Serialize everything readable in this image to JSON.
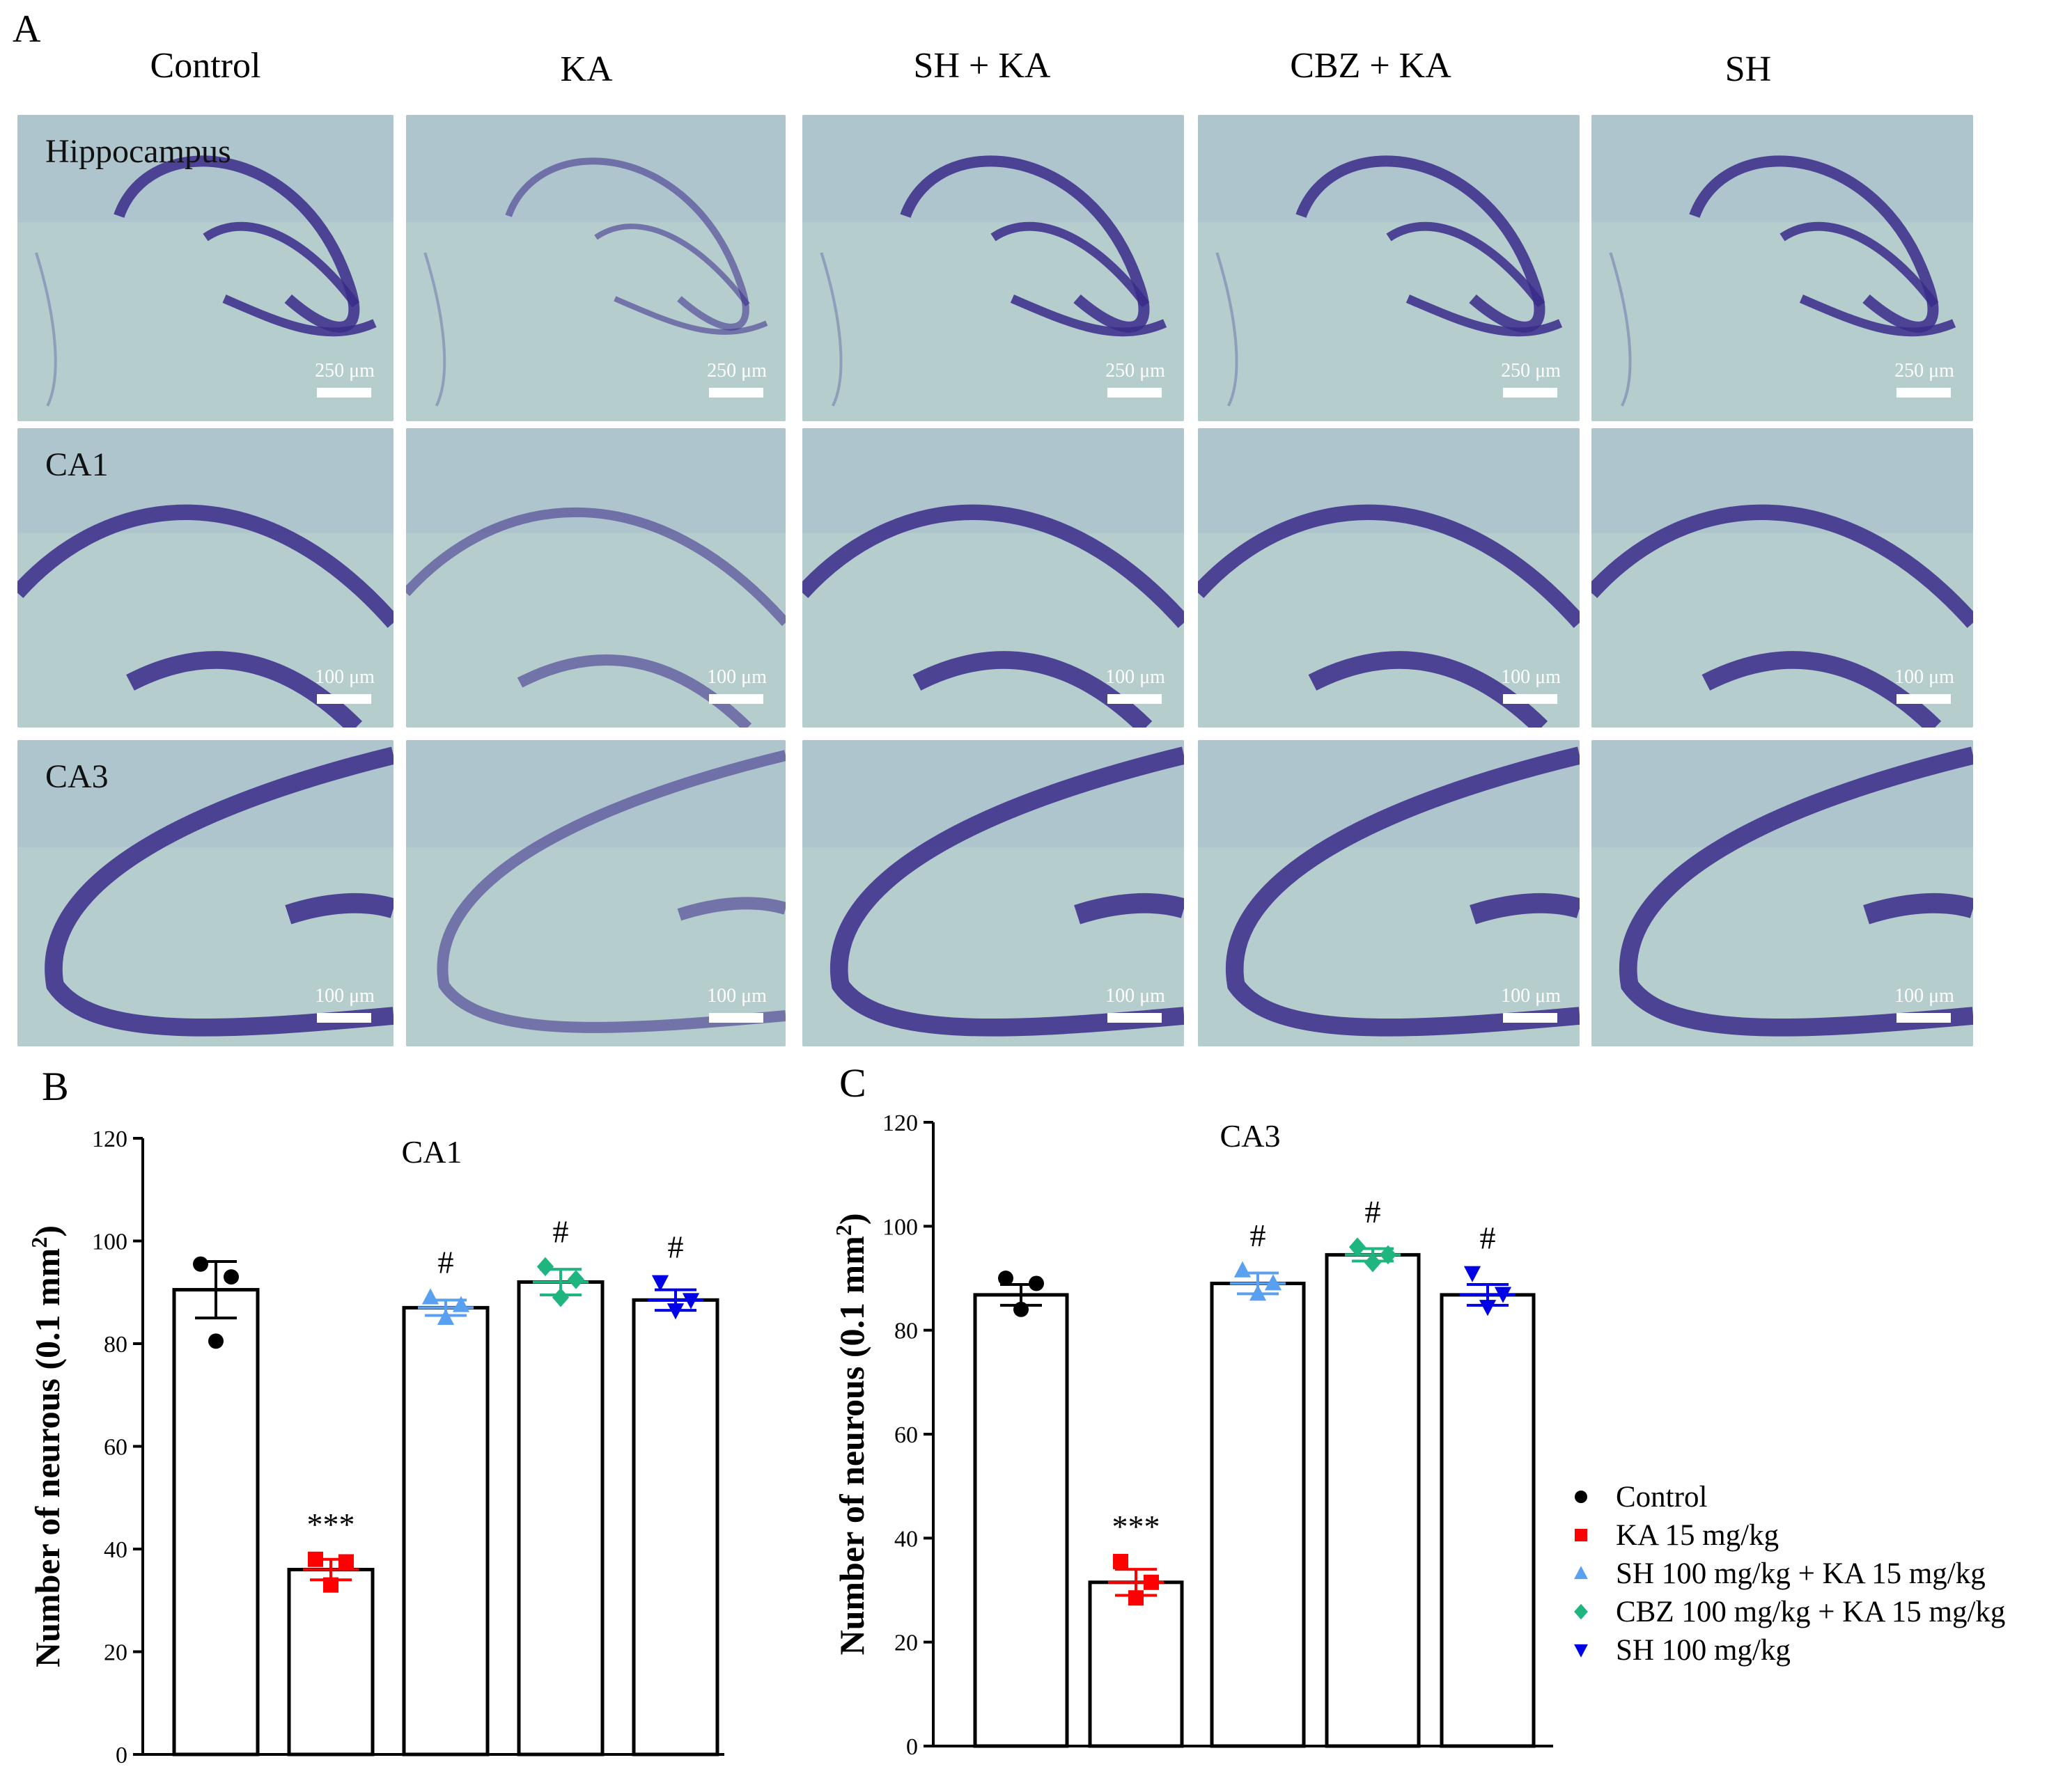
{
  "panel_a": {
    "letter": "A",
    "columns": [
      "Control",
      "KA",
      "SH + KA",
      "CBZ + KA",
      "SH"
    ],
    "rows": [
      {
        "label": "Hippocampus",
        "scale": "250 μm"
      },
      {
        "label": "CA1",
        "scale": "100 μm"
      },
      {
        "label": "CA3",
        "scale": "100 μm"
      }
    ]
  },
  "colors": {
    "control": "#000000",
    "ka": "#ff0000",
    "sh_ka": "#5aa0f0",
    "cbz_ka": "#1fb57e",
    "sh": "#0000e6",
    "tissue_bg": "#b5cdcc",
    "stain": "#3a2a8a"
  },
  "legend": [
    {
      "label": "Control",
      "marker": "circle",
      "color": "#000000"
    },
    {
      "label": "KA 15 mg/kg",
      "marker": "square",
      "color": "#ff0000"
    },
    {
      "label": "SH 100 mg/kg + KA 15 mg/kg",
      "marker": "triangle-up",
      "color": "#5aa0f0"
    },
    {
      "label": "CBZ 100 mg/kg + KA 15 mg/kg",
      "marker": "diamond",
      "color": "#1fb57e"
    },
    {
      "label": "SH 100 mg/kg",
      "marker": "triangle-down",
      "color": "#0000e6"
    }
  ],
  "chart_data": [
    {
      "panel": "B",
      "type": "bar",
      "title": "CA1",
      "ylabel": "Number of neurous (0.1 mm²)",
      "ylim": [
        0,
        120
      ],
      "yticks": [
        "0",
        "20",
        "40",
        "60",
        "80",
        "100",
        "120"
      ],
      "groups": [
        {
          "name": "Control",
          "mean": 90.5,
          "sem": 5.5,
          "points": [
            95.5,
            93.0,
            80.5
          ],
          "marker": "circle",
          "color": "#000000",
          "annot": ""
        },
        {
          "name": "KA 15 mg/kg",
          "mean": 36.0,
          "sem": 2.0,
          "points": [
            38.0,
            37.5,
            33.0
          ],
          "marker": "square",
          "color": "#ff0000",
          "annot": "***"
        },
        {
          "name": "SH 100 mg/kg + KA 15 mg/kg",
          "mean": 87.0,
          "sem": 1.5,
          "points": [
            89.0,
            87.5,
            85.0
          ],
          "marker": "triangle-up",
          "color": "#5aa0f0",
          "annot": "#"
        },
        {
          "name": "CBZ 100 mg/kg + KA 15 mg/kg",
          "mean": 92.0,
          "sem": 2.5,
          "points": [
            95.0,
            92.5,
            89.0
          ],
          "marker": "diamond",
          "color": "#1fb57e",
          "annot": "#"
        },
        {
          "name": "SH 100 mg/kg",
          "mean": 88.5,
          "sem": 2.0,
          "points": [
            92.0,
            88.5,
            86.5
          ],
          "marker": "triangle-down",
          "color": "#0000e6",
          "annot": "#"
        }
      ]
    },
    {
      "panel": "C",
      "type": "bar",
      "title": "CA3",
      "ylabel": "Number of neurous (0.1 mm²)",
      "ylim": [
        0,
        120
      ],
      "yticks": [
        "0",
        "20",
        "40",
        "60",
        "80",
        "100",
        "120"
      ],
      "groups": [
        {
          "name": "Control",
          "mean": 86.8,
          "sem": 2.0,
          "points": [
            90.0,
            89.0,
            84.0
          ],
          "marker": "circle",
          "color": "#000000",
          "annot": ""
        },
        {
          "name": "KA 15 mg/kg",
          "mean": 31.5,
          "sem": 2.5,
          "points": [
            35.5,
            31.5,
            28.5
          ],
          "marker": "square",
          "color": "#ff0000",
          "annot": "***"
        },
        {
          "name": "SH 100 mg/kg + KA 15 mg/kg",
          "mean": 89.0,
          "sem": 2.0,
          "points": [
            91.5,
            89.0,
            87.0
          ],
          "marker": "triangle-up",
          "color": "#5aa0f0",
          "annot": "#"
        },
        {
          "name": "CBZ 100 mg/kg + KA 15 mg/kg",
          "mean": 94.5,
          "sem": 1.2,
          "points": [
            96.0,
            94.5,
            93.0
          ],
          "marker": "diamond",
          "color": "#1fb57e",
          "annot": "#"
        },
        {
          "name": "SH 100 mg/kg",
          "mean": 86.8,
          "sem": 2.0,
          "points": [
            91.0,
            87.0,
            84.5
          ],
          "marker": "triangle-down",
          "color": "#0000e6",
          "annot": "#"
        }
      ]
    }
  ]
}
